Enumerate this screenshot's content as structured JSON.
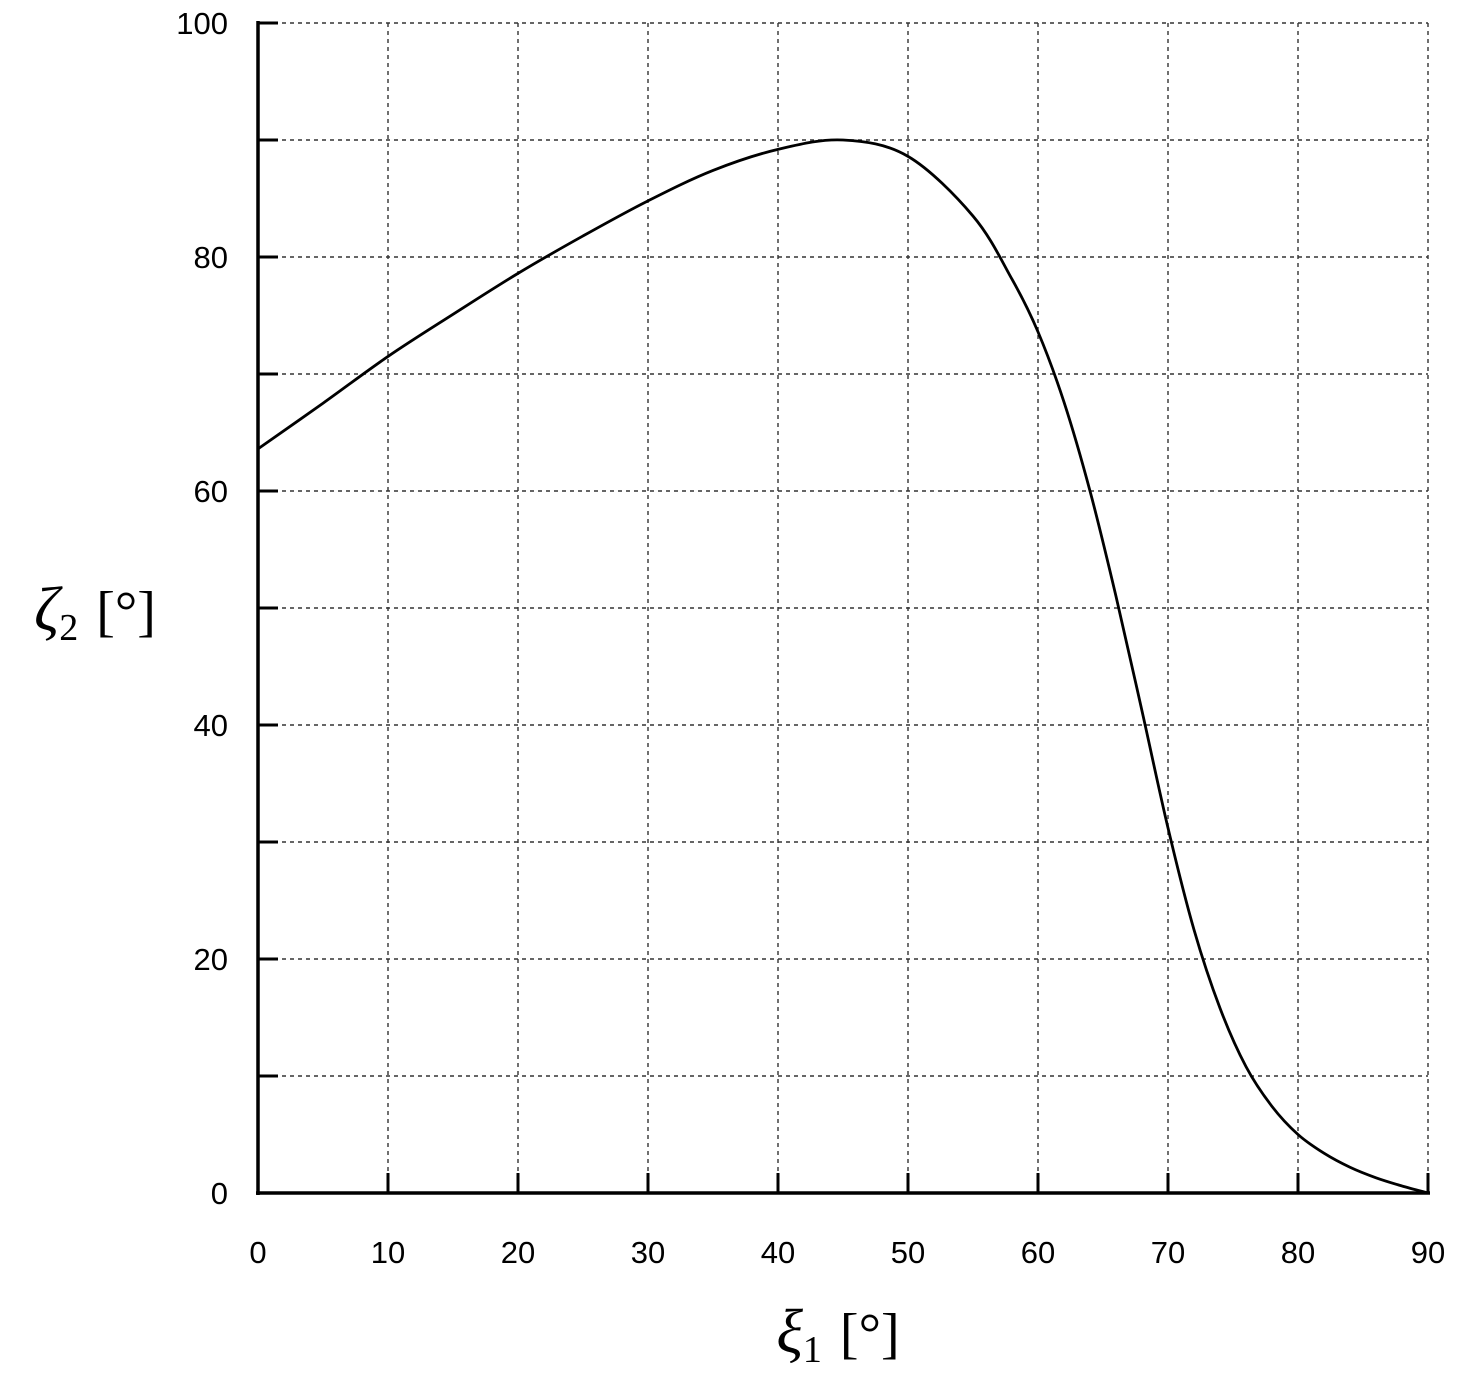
{
  "chart_data": {
    "type": "line",
    "xlabel": {
      "symbol": "ξ",
      "subscript": "1",
      "unit": "[°]"
    },
    "ylabel": {
      "symbol": "ζ",
      "subscript": "2",
      "unit": "[°]"
    },
    "xlim": [
      0,
      90
    ],
    "ylim": [
      0,
      100
    ],
    "x_ticks": [
      0,
      10,
      20,
      30,
      40,
      50,
      60,
      70,
      80,
      90
    ],
    "x_tick_labels": [
      "0",
      "10",
      "20",
      "30",
      "40",
      "50",
      "60",
      "70",
      "80",
      "90"
    ],
    "y_ticks": [
      0,
      10,
      20,
      30,
      40,
      50,
      60,
      70,
      80,
      90,
      100
    ],
    "y_tick_labels": [
      "0",
      "",
      "20",
      "",
      "40",
      "",
      "60",
      "",
      "80",
      "",
      "100"
    ],
    "grid": true,
    "grid_style": "dotted",
    "legend": "none",
    "series": [
      {
        "color": "#000000",
        "x": [
          0,
          5,
          10,
          15,
          20,
          25,
          30,
          35,
          40,
          45,
          50,
          55,
          58,
          60,
          62,
          64,
          66,
          68,
          70,
          72,
          74,
          76,
          78,
          80,
          82,
          84,
          86,
          88,
          90
        ],
        "y": [
          63.6,
          67.5,
          71.5,
          75.1,
          78.6,
          81.8,
          84.8,
          87.4,
          89.2,
          90.0,
          88.6,
          83.5,
          78.1,
          73.6,
          67.6,
          60.0,
          51.0,
          41.2,
          31.2,
          22.5,
          15.8,
          10.8,
          7.4,
          5.0,
          3.4,
          2.2,
          1.3,
          0.6,
          0.0
        ]
      }
    ]
  }
}
